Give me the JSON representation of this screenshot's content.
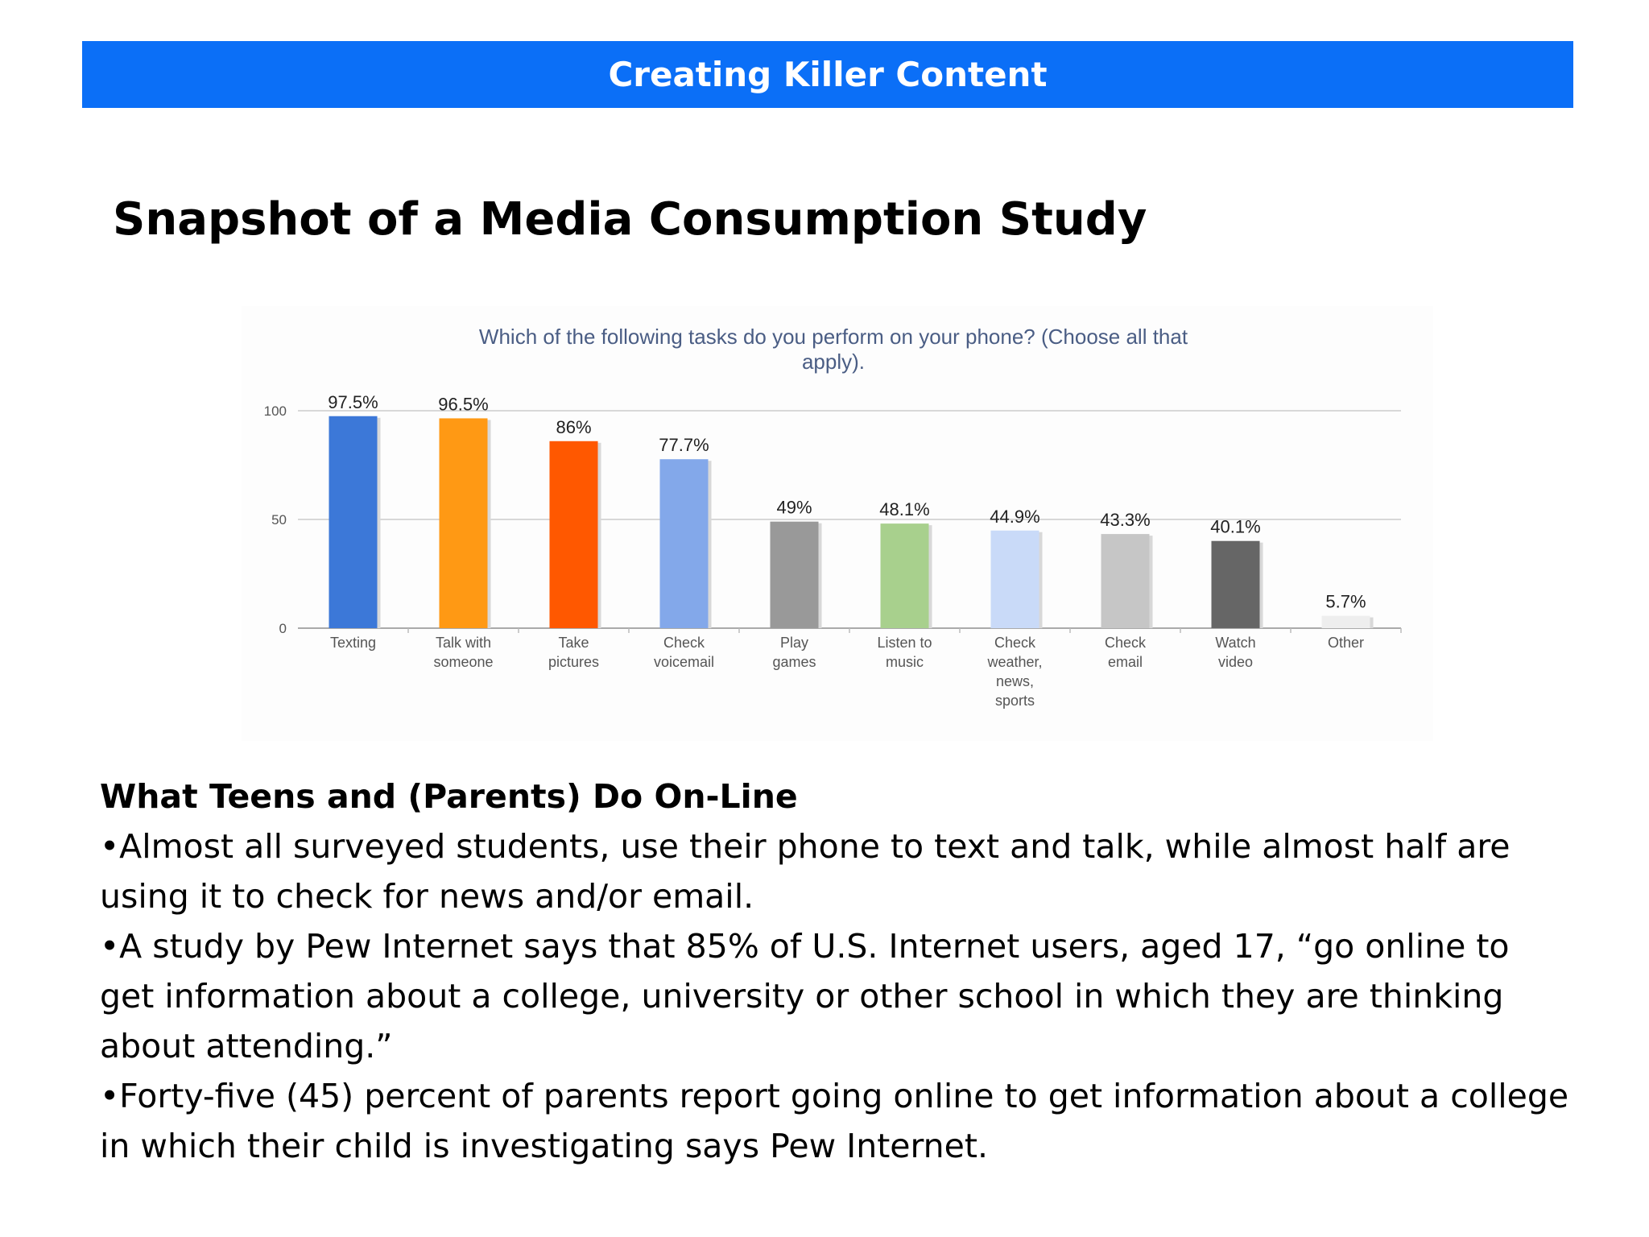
{
  "banner": {
    "title": "Creating Killer Content",
    "color": "#0b6ff7"
  },
  "slide": {
    "title": "Snapshot of a Media Consumption Study"
  },
  "chart_data": {
    "type": "bar",
    "title_lines": [
      "Which of the following tasks do you perform on your phone? (Choose all that",
      "apply)."
    ],
    "categories": [
      [
        "Texting"
      ],
      [
        "Talk with",
        "someone"
      ],
      [
        "Take",
        "pictures"
      ],
      [
        "Check",
        "voicemail"
      ],
      [
        "Play",
        "games"
      ],
      [
        "Listen to",
        "music"
      ],
      [
        "Check",
        "weather,",
        "news,",
        "sports"
      ],
      [
        "Check",
        "email"
      ],
      [
        "Watch",
        "video"
      ],
      [
        "Other"
      ]
    ],
    "values": [
      97.5,
      96.5,
      86,
      77.7,
      49,
      48.1,
      44.9,
      43.3,
      40.1,
      5.7
    ],
    "value_labels": [
      "97.5%",
      "96.5%",
      "86%",
      "77.7%",
      "49%",
      "48.1%",
      "44.9%",
      "43.3%",
      "40.1%",
      "5.7%"
    ],
    "colors": [
      "#3c78d8",
      "#ff9914",
      "#ff5800",
      "#83a8ea",
      "#999999",
      "#a8d08d",
      "#c9daf8",
      "#c6c6c6",
      "#666666",
      "#eeeeee"
    ],
    "yticks": [
      0,
      50,
      100
    ],
    "ylim": [
      0,
      100
    ],
    "grid": true,
    "legend": "none"
  },
  "content": {
    "subheading": "What Teens and (Parents) Do On-Line",
    "bullets": [
      "•Almost all surveyed students, use their phone to text and talk, while almost half are using it to check for news and/or email.",
      "•A study by Pew Internet says that 85% of U.S. Internet users, aged 17, “go online to get information about a college, university or other school in which they are thinking about attending.”",
      "•Forty-five (45) percent of parents report going online to get information about a college in which their child is investigating says Pew Internet."
    ]
  }
}
